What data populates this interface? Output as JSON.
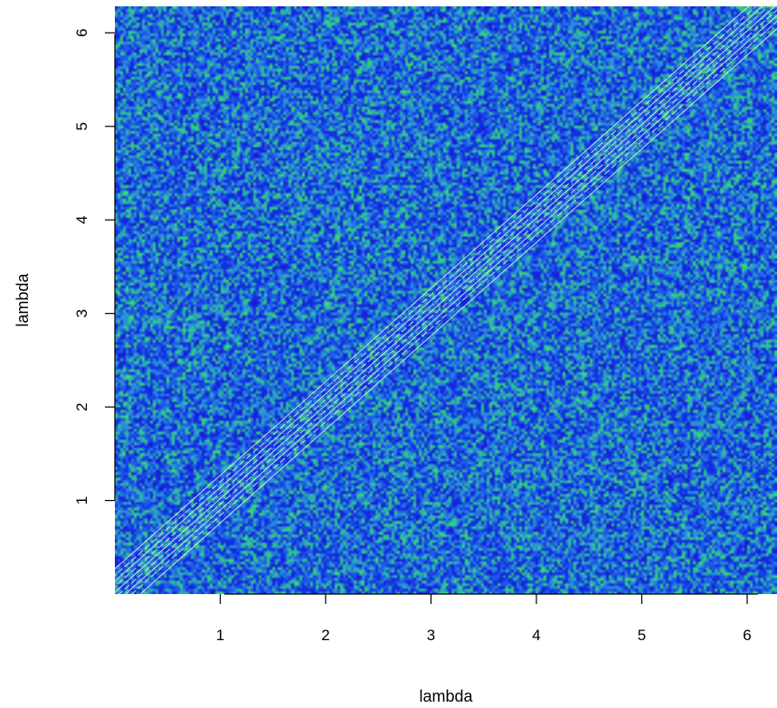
{
  "chart_data": {
    "type": "heatmap",
    "title": "",
    "xlabel": "lambda",
    "ylabel": "lambda",
    "xlim": [
      0,
      6.2832
    ],
    "ylim": [
      0,
      6.2832
    ],
    "x_ticks": [
      1,
      2,
      3,
      4,
      5,
      6
    ],
    "y_ticks": [
      1,
      2,
      3,
      4,
      5,
      6
    ],
    "x_tick_labels": [
      "1",
      "2",
      "3",
      "4",
      "5",
      "6"
    ],
    "y_tick_labels": [
      "1",
      "2",
      "3",
      "4",
      "5",
      "6"
    ],
    "palette": [
      "#1a1ad8",
      "#1030e0",
      "#1e5ae6",
      "#2a90d8",
      "#30c88a",
      "#38e070"
    ],
    "background_pattern": "random noise",
    "diagonal_contours": {
      "description": "Contour lines running along the diagonal y = x",
      "line_color": "#e8e8e8",
      "offsets": [
        -0.24,
        -0.16,
        -0.1,
        -0.04,
        0.02,
        0.08,
        0.14,
        0.2,
        0.27
      ]
    },
    "grid": false,
    "legend": "none"
  }
}
